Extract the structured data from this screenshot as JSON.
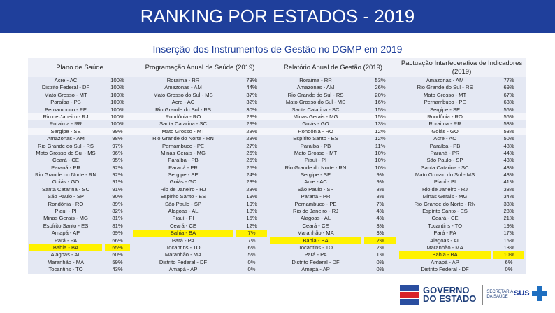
{
  "header": {
    "title": "RANKING POR ESTADOS - 2019",
    "subtitle": "Inserção dos Instrumentos de Gestão no DGMP em 2019"
  },
  "columns": {
    "plano": "Plano de Saúde",
    "pas": "Programação Anual de Saúde (2019)",
    "rag": "Relatório Anual de Gestão (2019)",
    "pi": "Pactuação Interfederativa de Indicadores (2019)"
  },
  "groups": [
    {
      "plano": [
        [
          "Acre - AC",
          "100%"
        ],
        [
          "Distrito Federal - DF",
          "100%"
        ],
        [
          "Mato Grosso - MT",
          "100%"
        ],
        [
          "Paraíba - PB",
          "100%"
        ],
        [
          "Pernambuco - PE",
          "100%"
        ]
      ],
      "pas": [
        [
          "Roraima - RR",
          "73%"
        ],
        [
          "Amazonas - AM",
          "44%"
        ],
        [
          "Mato Grosso do Sul - MS",
          "37%"
        ],
        [
          "Acre - AC",
          "32%"
        ],
        [
          "Rio Grande do Sul - RS",
          "30%"
        ]
      ],
      "rag": [
        [
          "Roraima - RR",
          "53%"
        ],
        [
          "Amazonas - AM",
          "26%"
        ],
        [
          "Rio Grande do Sul - RS",
          "20%"
        ],
        [
          "Mato Grosso do Sul - MS",
          "16%"
        ],
        [
          "Santa Catarina - SC",
          "15%"
        ]
      ],
      "pi": [
        [
          "Amazonas - AM",
          "77%"
        ],
        [
          "Rio Grande do Sul - RS",
          "69%"
        ],
        [
          "Mato Grosso - MT",
          "67%"
        ],
        [
          "Pernambuco - PE",
          "63%"
        ],
        [
          "Sergipe - SE",
          "56%"
        ]
      ]
    },
    {
      "plano": [
        [
          "Rio de Janeiro - RJ",
          "100%"
        ]
      ],
      "pas": [
        [
          "Rondônia - RO",
          "29%"
        ]
      ],
      "rag": [
        [
          "Minas Gerais - MG",
          "15%"
        ]
      ],
      "pi": [
        [
          "Rondônia - RO",
          "56%"
        ]
      ]
    },
    {
      "plano": [
        [
          "Roraima - RR",
          "100%"
        ]
      ],
      "pas": [
        [
          "Santa Catarina - SC",
          "29%"
        ]
      ],
      "rag": [
        [
          "Goiás - GO",
          "13%"
        ]
      ],
      "pi": [
        [
          "Roraima - RR",
          "53%"
        ]
      ]
    },
    {
      "plano": [
        [
          "Sergipe - SE",
          "99%"
        ]
      ],
      "pas": [
        [
          "Mato Grosso - MT",
          "28%"
        ]
      ],
      "rag": [
        [
          "Rondônia - RO",
          "12%"
        ]
      ],
      "pi": [
        [
          "Goiás - GO",
          "53%"
        ]
      ]
    },
    {
      "plano": [
        [
          "Amazonas - AM",
          "98%"
        ],
        [
          "Rio Grande do Sul - RS",
          "97%"
        ],
        [
          "Mato Grosso do Sul - MS",
          "96%"
        ],
        [
          "Ceará - CE",
          "95%"
        ],
        [
          "Paraná - PR",
          "92%"
        ],
        [
          "Rio Grande do Norte - RN",
          "92%"
        ],
        [
          "Goiás - GO",
          "91%"
        ],
        [
          "Santa Catarina - SC",
          "91%"
        ],
        [
          "São Paulo - SP",
          "90%"
        ],
        [
          "Rondônia - RO",
          "89%"
        ],
        [
          "Piauí - PI",
          "82%"
        ],
        [
          "Minas Gerais - MG",
          "81%"
        ],
        [
          "Espírito Santo - ES",
          "81%"
        ],
        [
          "Amapá - AP",
          "69%"
        ],
        [
          "Pará - PA",
          "66%"
        ],
        [
          "Bahia - BA",
          "65%"
        ],
        [
          "Alagoas - AL",
          "60%"
        ],
        [
          "Maranhão - MA",
          "59%"
        ],
        [
          "Tocantins - TO",
          "43%"
        ]
      ],
      "pas": [
        [
          "Rio Grande do Norte - RN",
          "28%"
        ],
        [
          "Pernambuco - PE",
          "27%"
        ],
        [
          "Minas Gerais - MG",
          "26%"
        ],
        [
          "Paraíba - PB",
          "25%"
        ],
        [
          "Paraná - PR",
          "25%"
        ],
        [
          "Sergipe - SE",
          "24%"
        ],
        [
          "Goiás - GO",
          "23%"
        ],
        [
          "Rio de Janeiro - RJ",
          "23%"
        ],
        [
          "Espírito Santo - ES",
          "19%"
        ],
        [
          "São Paulo - SP",
          "19%"
        ],
        [
          "Alagoas - AL",
          "18%"
        ],
        [
          "Piauí - PI",
          "15%"
        ],
        [
          "Ceará - CE",
          "12%"
        ],
        [
          "Bahia - BA",
          "7%"
        ],
        [
          "Pará - PA",
          "7%"
        ],
        [
          "Tocantins - TO",
          "6%"
        ],
        [
          "Maranhão - MA",
          "5%"
        ],
        [
          "Distrito Federal - DF",
          "0%"
        ],
        [
          "Amapá - AP",
          "0%"
        ]
      ],
      "rag": [
        [
          "Espírito Santo - ES",
          "12%"
        ],
        [
          "Paraíba - PB",
          "11%"
        ],
        [
          "Mato Grosso - MT",
          "10%"
        ],
        [
          "Piauí - PI",
          "10%"
        ],
        [
          "Rio Grande do Norte - RN",
          "10%"
        ],
        [
          "Sergipe - SE",
          "9%"
        ],
        [
          "Acre - AC",
          "9%"
        ],
        [
          "São Paulo - SP",
          "8%"
        ],
        [
          "Paraná - PR",
          "8%"
        ],
        [
          "Pernambuco - PE",
          "7%"
        ],
        [
          "Rio de Janeiro - RJ",
          "4%"
        ],
        [
          "Alagoas - AL",
          "4%"
        ],
        [
          "Ceará - CE",
          "3%"
        ],
        [
          "Maranhão - MA",
          "3%"
        ],
        [
          "Bahia - BA",
          "2%"
        ],
        [
          "Tocantins - TO",
          "2%"
        ],
        [
          "Pará - PA",
          "1%"
        ],
        [
          "Distrito Federal - DF",
          "0%"
        ],
        [
          "Amapá - AP",
          "0%"
        ]
      ],
      "pi": [
        [
          "Acre - AC",
          "50%"
        ],
        [
          "Paraíba - PB",
          "48%"
        ],
        [
          "Paraná - PR",
          "44%"
        ],
        [
          "São Paulo - SP",
          "43%"
        ],
        [
          "Santa Catarina - SC",
          "43%"
        ],
        [
          "Mato Grosso do Sul - MS",
          "43%"
        ],
        [
          "Piauí - PI",
          "41%"
        ],
        [
          "Rio de Janeiro - RJ",
          "38%"
        ],
        [
          "Minas Gerais - MG",
          "34%"
        ],
        [
          "Rio Grande do Norte - RN",
          "33%"
        ],
        [
          "Espírito Santo - ES",
          "28%"
        ],
        [
          "Ceará - CE",
          "21%"
        ],
        [
          "Tocantins - TO",
          "19%"
        ],
        [
          "Pará - PA",
          "17%"
        ],
        [
          "Alagoas - AL",
          "16%"
        ],
        [
          "Maranhão - MA",
          "13%"
        ],
        [
          "Bahia - BA",
          "10%"
        ],
        [
          "Amapá - AP",
          "6%"
        ],
        [
          "Distrito Federal - DF",
          "0%"
        ]
      ]
    }
  ],
  "highlight_name": "Bahia - BA",
  "footer": {
    "gov_line1": "GOVERNO",
    "gov_line2": "DO ESTADO",
    "secretaria_line1": "SECRETARIA",
    "secretaria_line2": "DA SAÚDE",
    "sus": "SUS"
  },
  "colors": {
    "title_bg": "#1f3f9b",
    "highlight": "#fff200"
  }
}
